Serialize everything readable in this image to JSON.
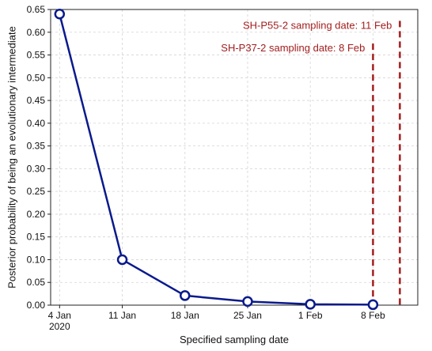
{
  "chart_data": {
    "type": "line",
    "title": "",
    "xlabel": "Specified sampling date",
    "ylabel": "Posterior probability of being an evolutionary intermediate",
    "ylim": [
      0,
      0.65
    ],
    "y_ticks": [
      "0.00",
      "0.05",
      "0.10",
      "0.15",
      "0.20",
      "0.25",
      "0.30",
      "0.35",
      "0.40",
      "0.45",
      "0.50",
      "0.55",
      "0.60",
      "0.65"
    ],
    "y_tick_values": [
      0,
      0.05,
      0.1,
      0.15,
      0.2,
      0.25,
      0.3,
      0.35,
      0.4,
      0.45,
      0.5,
      0.55,
      0.6,
      0.65
    ],
    "x_ticks": [
      {
        "line1": "4 Jan",
        "line2": "2020"
      },
      {
        "line1": "11 Jan",
        "line2": ""
      },
      {
        "line1": "18 Jan",
        "line2": ""
      },
      {
        "line1": "25 Jan",
        "line2": ""
      },
      {
        "line1": "1 Feb",
        "line2": ""
      },
      {
        "line1": "8 Feb",
        "line2": ""
      }
    ],
    "x_tick_dates": [
      "2020-01-04",
      "2020-01-11",
      "2020-01-18",
      "2020-01-25",
      "2020-02-01",
      "2020-02-08"
    ],
    "xlim": [
      "2020-01-03",
      "2020-02-13"
    ],
    "grid": true,
    "series": [
      {
        "x": [
          "2020-01-04",
          "2020-01-11",
          "2020-01-18",
          "2020-01-25",
          "2020-02-01",
          "2020-02-08"
        ],
        "y": [
          0.64,
          0.1,
          0.021,
          0.008,
          0.002,
          0.001
        ],
        "color": "#0a1a8c"
      }
    ],
    "annotations": [
      {
        "date": "2020-02-08",
        "top_value": 0.575,
        "label": "SH-P37-2 sampling date: 8 Feb",
        "color": "#a21e1e"
      },
      {
        "date": "2020-02-11",
        "top_value": 0.625,
        "label": "SH-P55-2 sampling date: 11 Feb",
        "color": "#a21e1e"
      }
    ],
    "colors": {
      "series": "#0a1a8c",
      "annotation": "#a21e1e",
      "grid": "#d4d4d4",
      "axis": "#222222"
    }
  }
}
